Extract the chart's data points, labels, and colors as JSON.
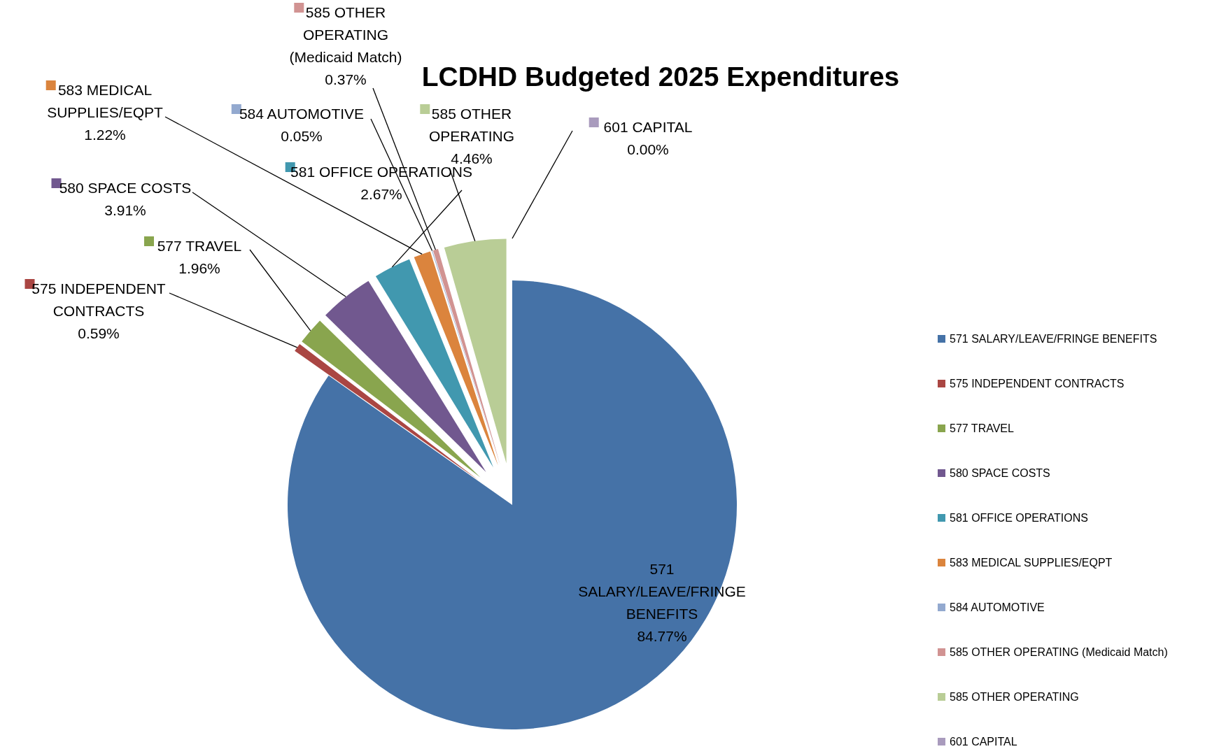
{
  "chart_data": {
    "type": "pie",
    "title": "LCDHD Budgeted 2025 Expenditures",
    "categories": [
      "571 SALARY/LEAVE/FRINGE BENEFITS",
      "575 INDEPENDENT CONTRACTS",
      "577 TRAVEL",
      "580 SPACE COSTS",
      "581 OFFICE OPERATIONS",
      "583 MEDICAL SUPPLIES/EQPT",
      "584 AUTOMOTIVE",
      "585 OTHER OPERATING (Medicaid Match)",
      "585 OTHER OPERATING",
      "601 CAPITAL"
    ],
    "values": [
      84.77,
      0.59,
      1.96,
      3.91,
      2.67,
      1.22,
      0.05,
      0.37,
      4.46,
      0.0
    ],
    "value_labels": [
      "84.77%",
      "0.59%",
      "1.96%",
      "3.91%",
      "2.67%",
      "1.22%",
      "0.05%",
      "0.37%",
      "4.46%",
      "0.00%"
    ],
    "colors": [
      "#4572a7",
      "#aa4643",
      "#89a54e",
      "#71588f",
      "#4198af",
      "#db843d",
      "#93a9cf",
      "#d19392",
      "#b9cd96",
      "#a99bbd"
    ],
    "legend": "right"
  }
}
